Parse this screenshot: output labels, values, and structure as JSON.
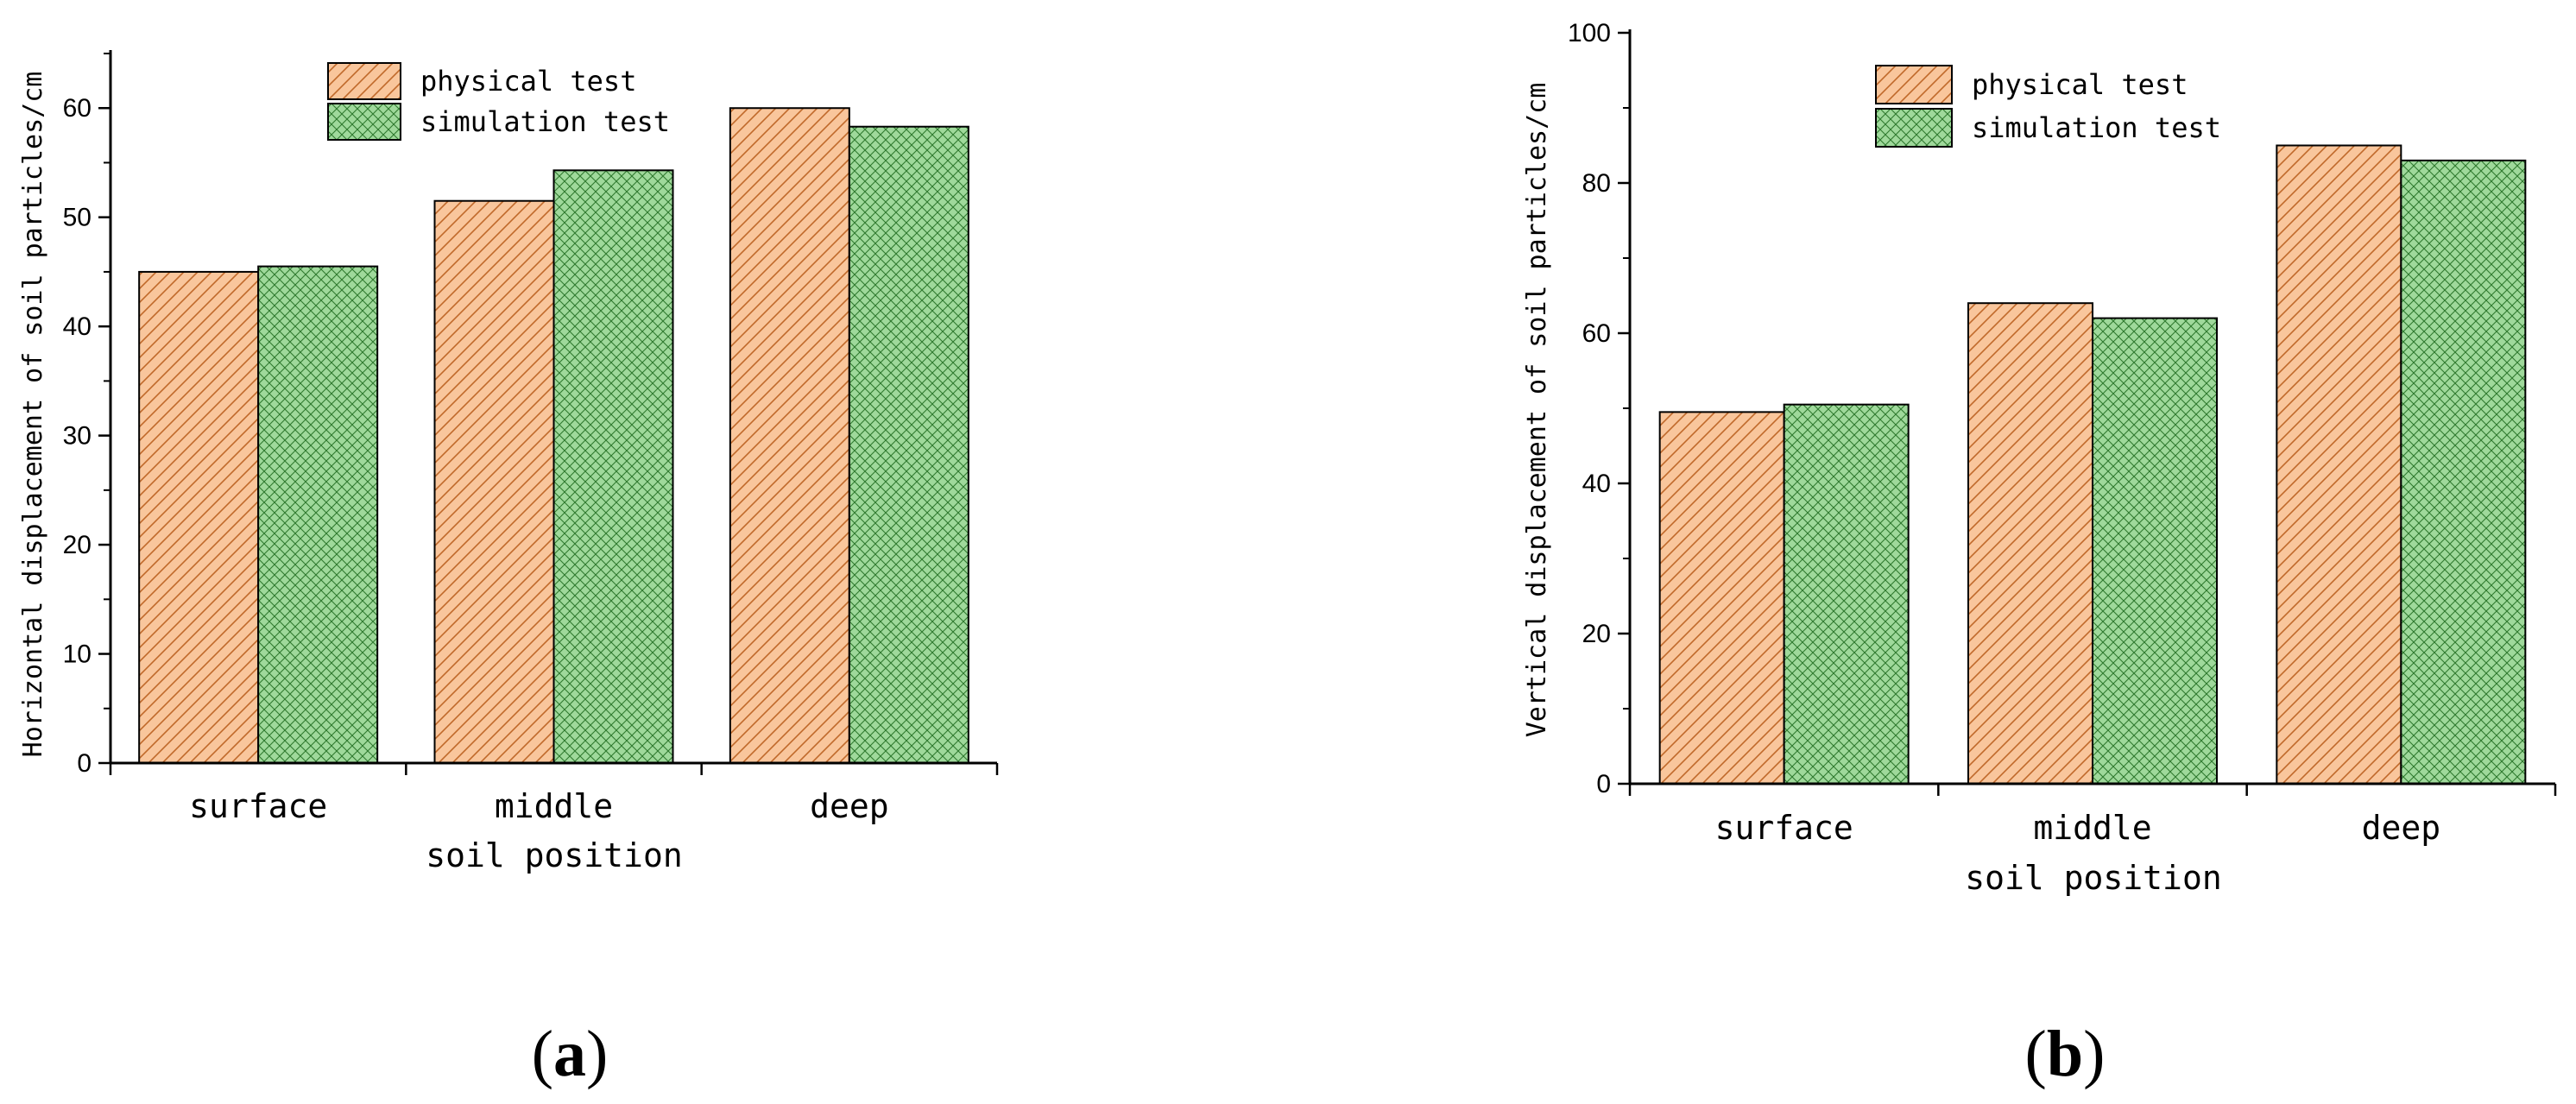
{
  "colors": {
    "physical_fill": "#f9c69c",
    "physical_hatch": "#c0692a",
    "simulation_fill": "#9fd99b",
    "simulation_hatch": "#2f7a2f"
  },
  "chart_data": [
    {
      "type": "bar",
      "panel": "(a)",
      "panel_letter": "a",
      "categories": [
        "surface",
        "middle",
        "deep"
      ],
      "series": [
        {
          "name": "physical test",
          "values": [
            45.0,
            51.5,
            60.0
          ]
        },
        {
          "name": "simulation test",
          "values": [
            45.5,
            54.3,
            58.3
          ]
        }
      ],
      "xlabel": "soil position",
      "ylabel": "Horizontal displacement of soil particles/cm",
      "ylim": [
        0,
        65
      ],
      "yticks": [
        0,
        10,
        20,
        30,
        40,
        50,
        60
      ],
      "grid": false,
      "legend_position": "top-center"
    },
    {
      "type": "bar",
      "panel": "(b)",
      "panel_letter": "b",
      "categories": [
        "surface",
        "middle",
        "deep"
      ],
      "series": [
        {
          "name": "physical test",
          "values": [
            49.5,
            64.0,
            85.0
          ]
        },
        {
          "name": "simulation test",
          "values": [
            50.5,
            62.0,
            83.0
          ]
        }
      ],
      "xlabel": "soil position",
      "ylabel": "Vertical displacement of soil particles/cm",
      "ylim": [
        0,
        100
      ],
      "yticks": [
        0,
        20,
        40,
        60,
        80,
        100
      ],
      "grid": false,
      "legend_position": "top-center"
    }
  ]
}
